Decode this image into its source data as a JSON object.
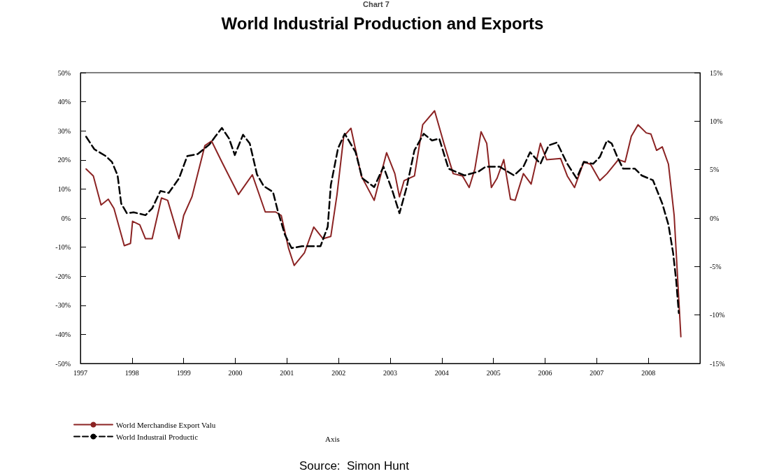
{
  "chart_data": {
    "type": "line",
    "title": "World Industrial Production and Exports",
    "annotations": [
      "Axis",
      "Source:  Simon Hunt",
      "Chart 7"
    ],
    "xlim": [
      1997,
      2009
    ],
    "xticks": [
      1997,
      1998,
      1999,
      2000,
      2001,
      2002,
      2003,
      2004,
      2005,
      2006,
      2007,
      2008
    ],
    "ylim": [
      -50,
      50
    ],
    "yticks": [
      {
        "value": -50,
        "label": "-50%"
      },
      {
        "value": -40,
        "label": "-40%"
      },
      {
        "value": -30,
        "label": "-30%"
      },
      {
        "value": -20,
        "label": "-20%"
      },
      {
        "value": -10,
        "label": "-10%"
      },
      {
        "value": 0,
        "label": "0%"
      },
      {
        "value": 10,
        "label": "10%"
      },
      {
        "value": 20,
        "label": "20%"
      },
      {
        "value": 30,
        "label": "30%"
      },
      {
        "value": 40,
        "label": "40%"
      },
      {
        "value": 50,
        "label": "50%"
      }
    ],
    "y2lim": [
      -15,
      15
    ],
    "y2ticks": [
      {
        "value": -15,
        "label": "-15%"
      },
      {
        "value": -10,
        "label": "-10%"
      },
      {
        "value": -5,
        "label": "-5%"
      },
      {
        "value": 0,
        "label": "0%"
      },
      {
        "value": 5,
        "label": "5%"
      },
      {
        "value": 10,
        "label": "10%"
      },
      {
        "value": 15,
        "label": "15%"
      }
    ],
    "grid": false,
    "legend": "bottom left",
    "marker": "none",
    "series": [
      {
        "name": "World Merchandise Export Valu",
        "color": "#8b2323",
        "line_style": "solid",
        "x": [
          1997.11,
          1997.25,
          1997.4,
          1997.54,
          1997.65,
          1997.85,
          1997.97,
          1998.01,
          1998.15,
          1998.26,
          1998.39,
          1998.57,
          1998.69,
          1998.91,
          1999.0,
          1999.16,
          1999.41,
          1999.54,
          1999.74,
          2000.06,
          2000.33,
          2000.58,
          2000.78,
          2000.89,
          2001.03,
          2001.14,
          2001.34,
          2001.52,
          2001.7,
          2001.85,
          2001.97,
          2002.1,
          2002.24,
          2002.44,
          2002.69,
          2002.93,
          2003.09,
          2003.18,
          2003.27,
          2003.47,
          2003.63,
          2003.86,
          2004.04,
          2004.22,
          2004.4,
          2004.53,
          2004.64,
          2004.76,
          2004.87,
          2004.96,
          2005.07,
          2005.2,
          2005.33,
          2005.42,
          2005.58,
          2005.73,
          2005.91,
          2006.03,
          2006.3,
          2006.43,
          2006.57,
          2006.75,
          2006.88,
          2007.06,
          2007.2,
          2007.42,
          2007.55,
          2007.67,
          2007.8,
          2007.96,
          2008.05,
          2008.16,
          2008.27,
          2008.39,
          2008.5,
          2008.54,
          2008.59,
          2008.63
        ],
        "values": [
          16.9,
          14.5,
          4.5,
          6.5,
          3.3,
          -9.5,
          -8.7,
          -1.1,
          -2.3,
          -7.1,
          -7.1,
          6.9,
          6.1,
          -7.1,
          0.9,
          7.3,
          24.9,
          26.5,
          19.3,
          8.1,
          14.9,
          2.1,
          2.1,
          0.9,
          -10.3,
          -16.3,
          -11.9,
          -3.1,
          -7.1,
          -6.3,
          8.1,
          28.1,
          30.9,
          14.5,
          6.1,
          22.5,
          15.3,
          7.3,
          12.9,
          14.5,
          32.1,
          36.9,
          25.7,
          15.3,
          14.5,
          10.5,
          16.9,
          29.7,
          25.7,
          10.5,
          13.7,
          20.1,
          6.5,
          6.1,
          15.3,
          11.7,
          25.7,
          20.1,
          20.5,
          14.5,
          10.5,
          19.3,
          18.5,
          12.9,
          15.3,
          20.1,
          19.3,
          28.1,
          32.1,
          29.3,
          28.9,
          23.3,
          24.5,
          18.5,
          0.9,
          -11.9,
          -28,
          -40.8
        ]
      },
      {
        "name": "World Industrail Productic",
        "color": "#000000",
        "line_style": "dashed",
        "axis": "y2",
        "x": [
          1997.11,
          1997.27,
          1997.49,
          1997.61,
          1997.72,
          1997.79,
          1997.9,
          1998.03,
          1998.26,
          1998.39,
          1998.55,
          1998.71,
          1998.91,
          1999.07,
          1999.27,
          1999.5,
          1999.61,
          1999.74,
          1999.88,
          1999.99,
          2000.15,
          2000.28,
          2000.42,
          2000.55,
          2000.73,
          2000.82,
          2000.96,
          2001.09,
          2001.29,
          2001.65,
          2001.79,
          2001.85,
          2001.99,
          2002.12,
          2002.33,
          2002.46,
          2002.69,
          2002.87,
          2003.05,
          2003.18,
          2003.32,
          2003.47,
          2003.65,
          2003.81,
          2003.95,
          2004.13,
          2004.44,
          2004.71,
          2004.85,
          2005.12,
          2005.4,
          2005.58,
          2005.71,
          2005.91,
          2006.07,
          2006.23,
          2006.43,
          2006.61,
          2006.75,
          2006.93,
          2007.06,
          2007.2,
          2007.29,
          2007.4,
          2007.51,
          2007.74,
          2007.87,
          2008.09,
          2008.27,
          2008.39,
          2008.48,
          2008.54,
          2008.59
        ],
        "values": [
          8.4,
          7.1,
          6.4,
          5.8,
          4.4,
          1.5,
          0.5,
          0.6,
          0.3,
          1.0,
          2.8,
          2.6,
          4.1,
          6.4,
          6.6,
          7.6,
          8.4,
          9.3,
          8.2,
          6.5,
          8.6,
          7.7,
          4.5,
          3.3,
          2.7,
          0.8,
          -1.7,
          -3.1,
          -2.9,
          -2.9,
          -0.9,
          3.4,
          7.2,
          8.7,
          6.8,
          4.1,
          3.2,
          5.3,
          2.7,
          0.5,
          3.2,
          7.0,
          8.7,
          8.0,
          8.2,
          5.1,
          4.4,
          4.8,
          5.3,
          5.3,
          4.4,
          5.3,
          6.8,
          5.6,
          7.5,
          7.8,
          5.6,
          4.1,
          5.8,
          5.6,
          6.3,
          8.0,
          7.7,
          6.3,
          5.1,
          5.1,
          4.4,
          3.9,
          1.5,
          -0.7,
          -3.6,
          -6.5,
          -9.8
        ]
      }
    ]
  }
}
